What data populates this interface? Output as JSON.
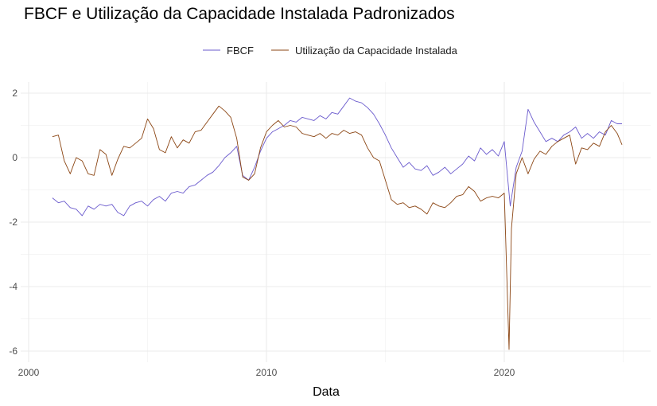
{
  "chart_data": {
    "type": "line",
    "title": "FBCF e Utilização da Capacidade Instalada Padronizados",
    "xlabel": "Data",
    "ylabel": "",
    "xlim": [
      2000,
      2025.8
    ],
    "ylim": [
      -6.2,
      2.25
    ],
    "x_ticks": [
      2000,
      2010,
      2020
    ],
    "x_tick_labels": [
      "2000",
      "2010",
      "2020"
    ],
    "y_ticks": [
      2,
      0,
      -2,
      -4,
      -6
    ],
    "y_tick_labels": [
      "2",
      "0",
      "-2",
      "-4",
      "-6"
    ],
    "grid": true,
    "legend_position": "top",
    "series": [
      {
        "name": "FBCF",
        "color": "#6a5acd",
        "x": [
          2001.0,
          2001.25,
          2001.5,
          2001.75,
          2002.0,
          2002.25,
          2002.5,
          2002.75,
          2003.0,
          2003.25,
          2003.5,
          2003.75,
          2004.0,
          2004.25,
          2004.5,
          2004.75,
          2005.0,
          2005.25,
          2005.5,
          2005.75,
          2006.0,
          2006.25,
          2006.5,
          2006.75,
          2007.0,
          2007.25,
          2007.5,
          2007.75,
          2008.0,
          2008.25,
          2008.5,
          2008.75,
          2009.0,
          2009.25,
          2009.5,
          2009.75,
          2010.0,
          2010.25,
          2010.5,
          2010.75,
          2011.0,
          2011.25,
          2011.5,
          2011.75,
          2012.0,
          2012.25,
          2012.5,
          2012.75,
          2013.0,
          2013.25,
          2013.5,
          2013.75,
          2014.0,
          2014.25,
          2014.5,
          2014.75,
          2015.0,
          2015.25,
          2015.5,
          2015.75,
          2016.0,
          2016.25,
          2016.5,
          2016.75,
          2017.0,
          2017.25,
          2017.5,
          2017.75,
          2018.0,
          2018.25,
          2018.5,
          2018.75,
          2019.0,
          2019.25,
          2019.5,
          2019.75,
          2020.0,
          2020.25,
          2020.5,
          2020.75,
          2021.0,
          2021.25,
          2021.5,
          2021.75,
          2022.0,
          2022.25,
          2022.5,
          2022.75,
          2023.0,
          2023.25,
          2023.5,
          2023.75,
          2024.0,
          2024.25,
          2024.5,
          2024.75,
          2024.95
        ],
        "values": [
          -1.25,
          -1.4,
          -1.35,
          -1.55,
          -1.6,
          -1.8,
          -1.5,
          -1.6,
          -1.45,
          -1.5,
          -1.45,
          -1.7,
          -1.8,
          -1.5,
          -1.4,
          -1.35,
          -1.5,
          -1.3,
          -1.2,
          -1.35,
          -1.1,
          -1.05,
          -1.1,
          -0.9,
          -0.85,
          -0.7,
          -0.55,
          -0.45,
          -0.25,
          0.0,
          0.15,
          0.35,
          -0.55,
          -0.7,
          -0.3,
          0.2,
          0.6,
          0.8,
          0.9,
          1.0,
          1.15,
          1.1,
          1.25,
          1.2,
          1.15,
          1.3,
          1.2,
          1.4,
          1.35,
          1.6,
          1.85,
          1.75,
          1.7,
          1.55,
          1.35,
          1.05,
          0.7,
          0.3,
          0.0,
          -0.3,
          -0.15,
          -0.35,
          -0.4,
          -0.25,
          -0.55,
          -0.45,
          -0.3,
          -0.5,
          -0.35,
          -0.2,
          0.05,
          -0.1,
          0.3,
          0.1,
          0.25,
          0.05,
          0.5,
          -1.5,
          -0.3,
          0.2,
          1.5,
          1.1,
          0.8,
          0.5,
          0.6,
          0.5,
          0.7,
          0.8,
          0.95,
          0.6,
          0.75,
          0.6,
          0.8,
          0.7,
          1.15,
          1.05,
          1.05
        ]
      },
      {
        "name": "Utilização da Capacidade Instalada",
        "color": "#8b4513",
        "x": [
          2001.0,
          2001.25,
          2001.5,
          2001.75,
          2002.0,
          2002.25,
          2002.5,
          2002.75,
          2003.0,
          2003.25,
          2003.5,
          2003.75,
          2004.0,
          2004.25,
          2004.5,
          2004.75,
          2005.0,
          2005.25,
          2005.5,
          2005.75,
          2006.0,
          2006.25,
          2006.5,
          2006.75,
          2007.0,
          2007.25,
          2007.5,
          2007.75,
          2008.0,
          2008.25,
          2008.5,
          2008.75,
          2009.0,
          2009.25,
          2009.5,
          2009.75,
          2010.0,
          2010.25,
          2010.5,
          2010.75,
          2011.0,
          2011.25,
          2011.5,
          2011.75,
          2012.0,
          2012.25,
          2012.5,
          2012.75,
          2013.0,
          2013.25,
          2013.5,
          2013.75,
          2014.0,
          2014.25,
          2014.5,
          2014.75,
          2015.0,
          2015.25,
          2015.5,
          2015.75,
          2016.0,
          2016.25,
          2016.5,
          2016.75,
          2017.0,
          2017.25,
          2017.5,
          2017.75,
          2018.0,
          2018.25,
          2018.5,
          2018.75,
          2019.0,
          2019.25,
          2019.5,
          2019.75,
          2020.0,
          2020.2,
          2020.3,
          2020.5,
          2020.75,
          2021.0,
          2021.25,
          2021.5,
          2021.75,
          2022.0,
          2022.25,
          2022.5,
          2022.75,
          2023.0,
          2023.25,
          2023.5,
          2023.75,
          2024.0,
          2024.25,
          2024.5,
          2024.75,
          2024.95
        ],
        "values": [
          0.65,
          0.7,
          -0.1,
          -0.5,
          0.0,
          -0.1,
          -0.5,
          -0.55,
          0.25,
          0.1,
          -0.55,
          -0.05,
          0.35,
          0.3,
          0.45,
          0.6,
          1.2,
          0.9,
          0.25,
          0.15,
          0.65,
          0.3,
          0.55,
          0.45,
          0.8,
          0.85,
          1.1,
          1.35,
          1.6,
          1.45,
          1.25,
          0.6,
          -0.6,
          -0.7,
          -0.5,
          0.3,
          0.8,
          1.0,
          1.15,
          0.95,
          1.0,
          0.95,
          0.75,
          0.7,
          0.65,
          0.75,
          0.6,
          0.75,
          0.7,
          0.85,
          0.75,
          0.8,
          0.7,
          0.3,
          0.0,
          -0.1,
          -0.7,
          -1.3,
          -1.45,
          -1.4,
          -1.55,
          -1.5,
          -1.6,
          -1.75,
          -1.4,
          -1.5,
          -1.55,
          -1.4,
          -1.2,
          -1.15,
          -0.9,
          -1.05,
          -1.35,
          -1.25,
          -1.2,
          -1.25,
          -1.1,
          -5.95,
          -2.2,
          -0.5,
          0.0,
          -0.5,
          -0.05,
          0.2,
          0.1,
          0.35,
          0.5,
          0.6,
          0.7,
          -0.2,
          0.3,
          0.25,
          0.45,
          0.35,
          0.8,
          1.0,
          0.75,
          0.4
        ]
      }
    ]
  }
}
